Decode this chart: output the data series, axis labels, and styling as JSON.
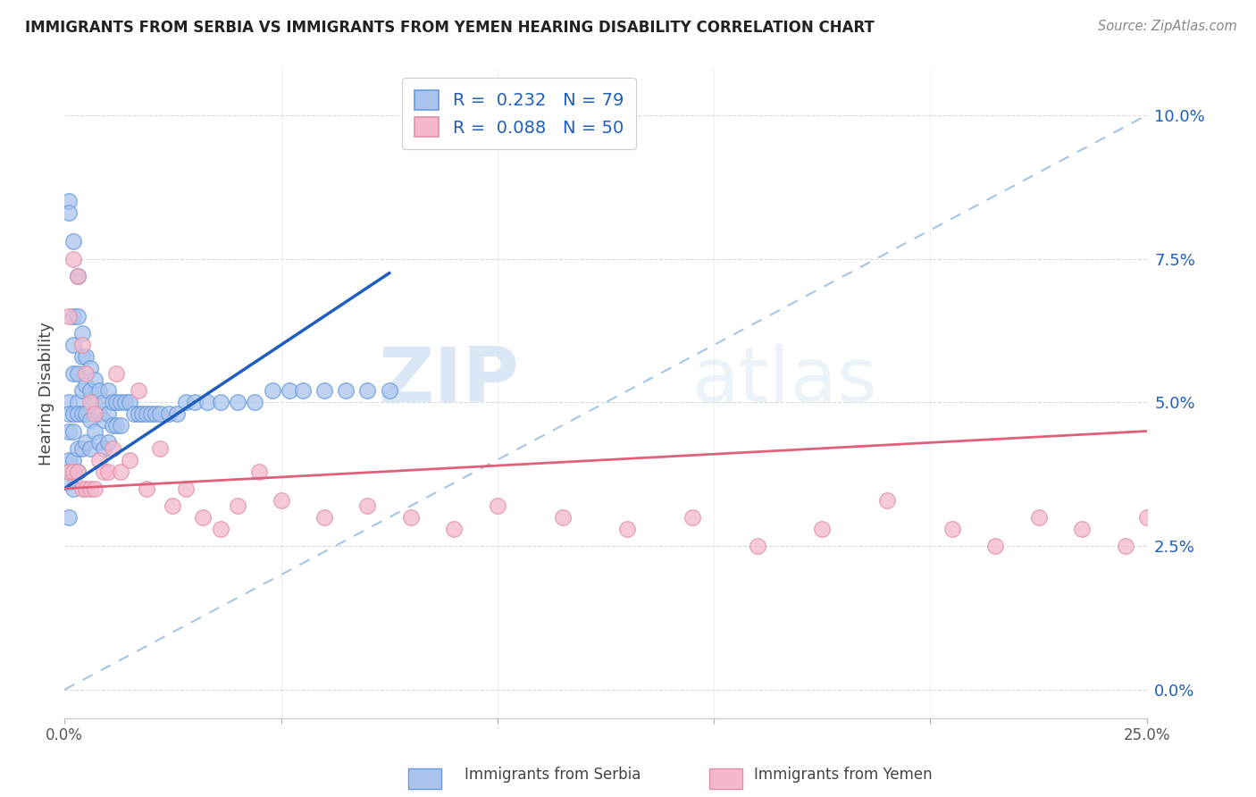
{
  "title": "IMMIGRANTS FROM SERBIA VS IMMIGRANTS FROM YEMEN HEARING DISABILITY CORRELATION CHART",
  "source": "Source: ZipAtlas.com",
  "ylabel": "Hearing Disability",
  "xlim": [
    0.0,
    0.25
  ],
  "ylim": [
    -0.005,
    0.108
  ],
  "watermark_zip": "ZIP",
  "watermark_atlas": "atlas",
  "legend_serbia_R": "R =  0.232",
  "legend_serbia_N": "N = 79",
  "legend_yemen_R": "R =  0.088",
  "legend_yemen_N": "N = 50",
  "serbia_color": "#aac4ee",
  "serbia_line_color": "#1f5fbb",
  "serbia_edge_color": "#6699dd",
  "yemen_color": "#f4b8cb",
  "yemen_line_color": "#e0607a",
  "yemen_edge_color": "#e090a8",
  "dashed_line_color": "#9bbfe0",
  "gridline_color": "#d8d8d8",
  "ytick_positions": [
    0.0,
    0.025,
    0.05,
    0.075,
    0.1
  ],
  "ytick_display": [
    "0.0%",
    "2.5%",
    "5.0%",
    "7.5%",
    "10.0%"
  ],
  "serbia_x": [
    0.001,
    0.001,
    0.001,
    0.001,
    0.001,
    0.001,
    0.001,
    0.001,
    0.001,
    0.002,
    0.002,
    0.002,
    0.002,
    0.002,
    0.002,
    0.002,
    0.002,
    0.003,
    0.003,
    0.003,
    0.003,
    0.003,
    0.003,
    0.003,
    0.004,
    0.004,
    0.004,
    0.004,
    0.004,
    0.005,
    0.005,
    0.005,
    0.005,
    0.006,
    0.006,
    0.006,
    0.006,
    0.007,
    0.007,
    0.007,
    0.008,
    0.008,
    0.008,
    0.009,
    0.009,
    0.009,
    0.01,
    0.01,
    0.01,
    0.011,
    0.011,
    0.012,
    0.012,
    0.013,
    0.013,
    0.014,
    0.015,
    0.016,
    0.017,
    0.018,
    0.019,
    0.02,
    0.021,
    0.022,
    0.024,
    0.026,
    0.028,
    0.03,
    0.033,
    0.036,
    0.04,
    0.044,
    0.048,
    0.052,
    0.055,
    0.06,
    0.065,
    0.07,
    0.075
  ],
  "serbia_y": [
    0.085,
    0.083,
    0.05,
    0.048,
    0.045,
    0.04,
    0.038,
    0.036,
    0.03,
    0.078,
    0.065,
    0.06,
    0.055,
    0.048,
    0.045,
    0.04,
    0.035,
    0.072,
    0.065,
    0.055,
    0.05,
    0.048,
    0.042,
    0.038,
    0.062,
    0.058,
    0.052,
    0.048,
    0.042,
    0.058,
    0.053,
    0.048,
    0.043,
    0.056,
    0.052,
    0.047,
    0.042,
    0.054,
    0.05,
    0.045,
    0.052,
    0.048,
    0.043,
    0.05,
    0.047,
    0.042,
    0.052,
    0.048,
    0.043,
    0.05,
    0.046,
    0.05,
    0.046,
    0.05,
    0.046,
    0.05,
    0.05,
    0.048,
    0.048,
    0.048,
    0.048,
    0.048,
    0.048,
    0.048,
    0.048,
    0.048,
    0.05,
    0.05,
    0.05,
    0.05,
    0.05,
    0.05,
    0.052,
    0.052,
    0.052,
    0.052,
    0.052,
    0.052,
    0.052
  ],
  "yemen_x": [
    0.001,
    0.001,
    0.002,
    0.002,
    0.003,
    0.003,
    0.004,
    0.004,
    0.005,
    0.005,
    0.006,
    0.006,
    0.007,
    0.007,
    0.008,
    0.009,
    0.01,
    0.011,
    0.012,
    0.013,
    0.015,
    0.017,
    0.019,
    0.022,
    0.025,
    0.028,
    0.032,
    0.036,
    0.04,
    0.045,
    0.05,
    0.06,
    0.07,
    0.08,
    0.09,
    0.1,
    0.115,
    0.13,
    0.145,
    0.16,
    0.175,
    0.19,
    0.205,
    0.215,
    0.225,
    0.235,
    0.245,
    0.25,
    0.255,
    0.26
  ],
  "yemen_y": [
    0.065,
    0.038,
    0.075,
    0.038,
    0.072,
    0.038,
    0.06,
    0.035,
    0.055,
    0.035,
    0.05,
    0.035,
    0.048,
    0.035,
    0.04,
    0.038,
    0.038,
    0.042,
    0.055,
    0.038,
    0.04,
    0.052,
    0.035,
    0.042,
    0.032,
    0.035,
    0.03,
    0.028,
    0.032,
    0.038,
    0.033,
    0.03,
    0.032,
    0.03,
    0.028,
    0.032,
    0.03,
    0.028,
    0.03,
    0.025,
    0.028,
    0.033,
    0.028,
    0.025,
    0.03,
    0.028,
    0.025,
    0.03,
    0.025,
    0.028
  ]
}
